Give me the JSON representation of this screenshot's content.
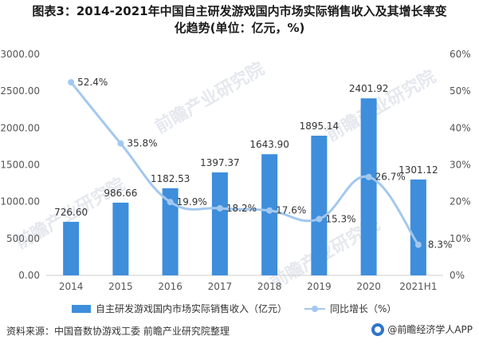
{
  "title_line1": "图表3：2014-2021年中国自主研发游戏国内市场实际销售收入及其增长率变",
  "title_line2": "化趋势(单位：亿元，%)",
  "legend": {
    "bar_label": "自主研发游戏国内市场实际销售收入（亿元）",
    "line_label": "同比增长（%）"
  },
  "source": "资料来源：中国音数协游戏工委 前瞻产业研究院整理",
  "brand": "@前瞻经济学人APP",
  "watermark": "前瞻产业研究院",
  "colors": {
    "bar": "#3e8edc",
    "line": "#a3c8ef",
    "axis_text": "#555555"
  },
  "chart_data": {
    "type": "bar",
    "categories": [
      "2014",
      "2015",
      "2016",
      "2017",
      "2018",
      "2019",
      "2020",
      "2021H1"
    ],
    "series": [
      {
        "name": "自主研发游戏国内市场实际销售收入（亿元）",
        "type": "bar",
        "axis": "left",
        "values": [
          726.6,
          986.66,
          1182.53,
          1397.37,
          1643.9,
          1895.14,
          2401.92,
          1301.12
        ],
        "labels": [
          "726.60",
          "986.66",
          "1182.53",
          "1397.37",
          "1643.90",
          "1895.14",
          "2401.92",
          "1301.12"
        ]
      },
      {
        "name": "同比增长（%）",
        "type": "line",
        "axis": "right",
        "smooth": true,
        "values": [
          52.4,
          35.8,
          19.9,
          18.2,
          17.6,
          15.3,
          26.7,
          8.3
        ],
        "labels": [
          "52.4%",
          "35.8%",
          "19.9%",
          "18.2%",
          "17.6%",
          "15.3%",
          "26.7%",
          "8.3%"
        ]
      }
    ],
    "ylim": [
      0,
      3000
    ],
    "yticks": [
      "0.00",
      "500.00",
      "1000.00",
      "1500.00",
      "2000.00",
      "2500.00",
      "3000.00"
    ],
    "y2lim": [
      0,
      60
    ],
    "y2ticks": [
      "0%",
      "10%",
      "20%",
      "30%",
      "40%",
      "50%",
      "60%"
    ],
    "legend_position": "bottom",
    "grid": false
  }
}
